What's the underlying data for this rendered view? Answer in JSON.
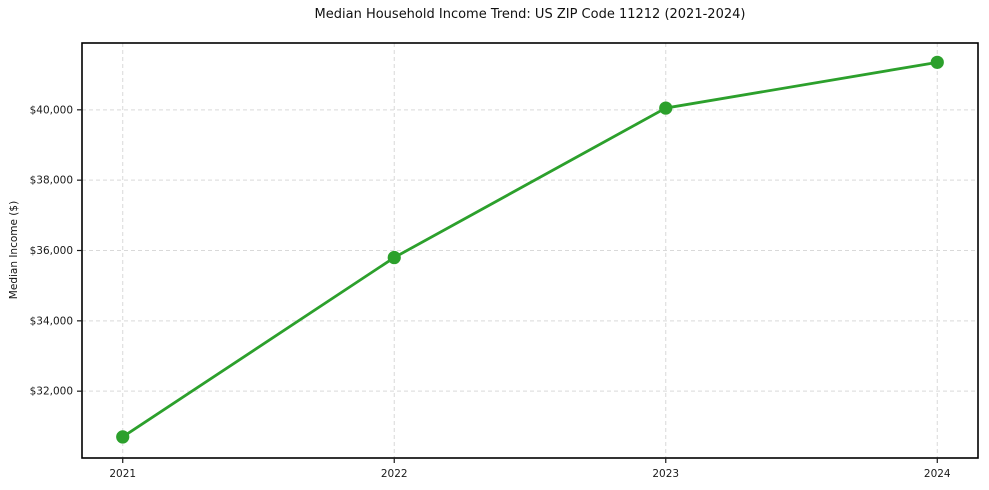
{
  "page": {
    "background": "#ffffff"
  },
  "chart_data": {
    "type": "line",
    "title": "Median Household Income Trend: US ZIP Code 11212 (2021-2024)",
    "xlabel": "",
    "ylabel": "Median Income ($)",
    "x": [
      2021,
      2022,
      2023,
      2024
    ],
    "series": [
      {
        "name": "Median Household Income",
        "values": [
          30700,
          35800,
          40050,
          41350
        ],
        "color": "#2ca02c",
        "line_width": 2.8,
        "marker": "circle",
        "marker_radius": 6.6
      }
    ],
    "xlim": [
      2020.85,
      2024.15
    ],
    "ylim": [
      30100,
      41900
    ],
    "xticks": [
      {
        "value": 2021,
        "label": "2021"
      },
      {
        "value": 2022,
        "label": "2022"
      },
      {
        "value": 2023,
        "label": "2023"
      },
      {
        "value": 2024,
        "label": "2024"
      }
    ],
    "yticks": [
      {
        "value": 32000,
        "label": "$32,000"
      },
      {
        "value": 34000,
        "label": "$34,000"
      },
      {
        "value": 36000,
        "label": "$36,000"
      },
      {
        "value": 38000,
        "label": "$38,000"
      },
      {
        "value": 40000,
        "label": "$40,000"
      }
    ],
    "grid": true,
    "grid_color": "#d9d9d9",
    "grid_dash": "4 3",
    "frame_color": "#000000",
    "tick_color": "#1a1a1a",
    "legend": "none"
  }
}
